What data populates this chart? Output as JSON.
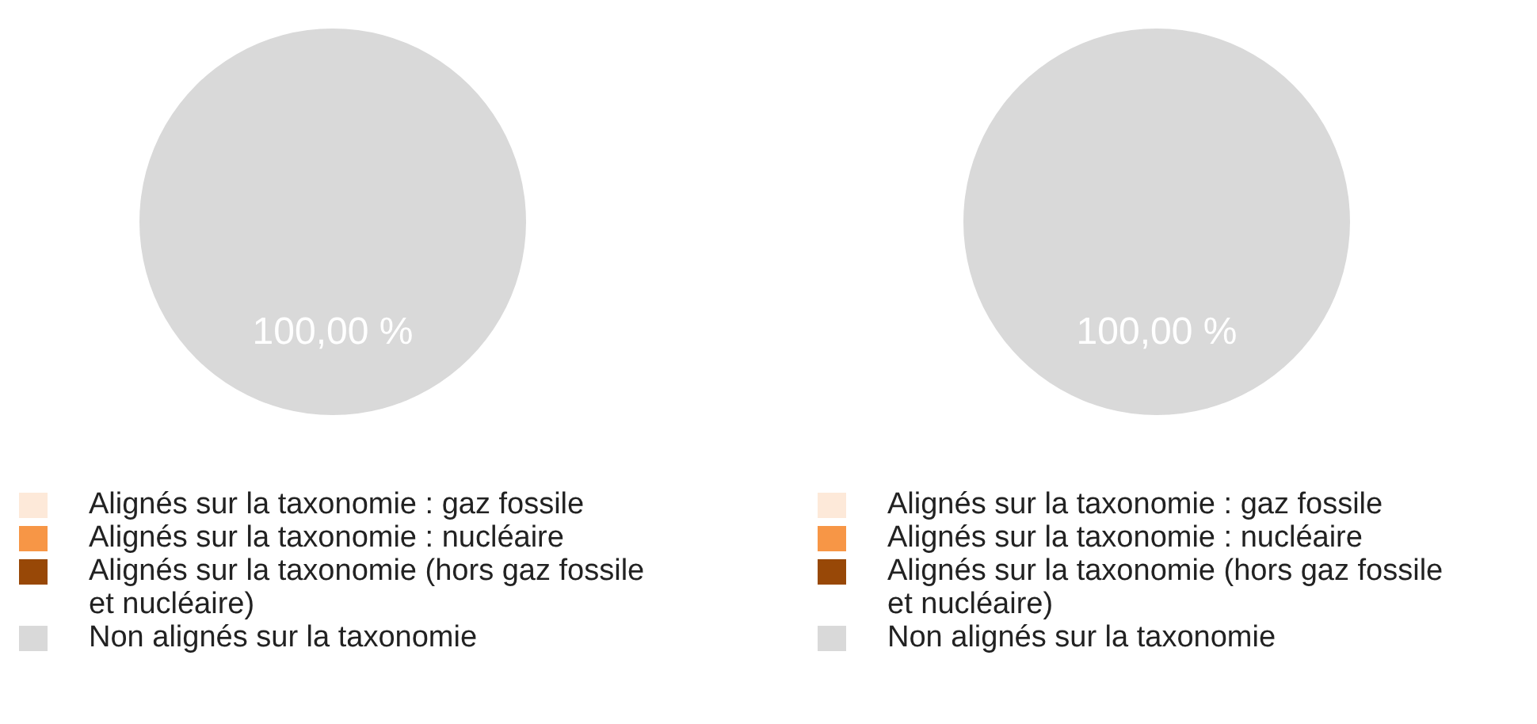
{
  "chart_data": [
    {
      "type": "pie",
      "categories": [
        "Alignés sur la taxonomie : gaz fossile",
        "Alignés sur la taxonomie : nucléaire",
        "Alignés sur la taxonomie (hors gaz fossile et nucléaire)",
        "Non alignés sur la taxonomie"
      ],
      "values": [
        0,
        0,
        0,
        100
      ],
      "colors": [
        "#fde9d9",
        "#f79646",
        "#984807",
        "#d9d9d9"
      ],
      "value_labels": [
        null,
        null,
        null,
        "100,00 %"
      ],
      "legend": "bottom"
    },
    {
      "type": "pie",
      "categories": [
        "Alignés sur la taxonomie : gaz fossile",
        "Alignés sur la taxonomie : nucléaire",
        "Alignés sur la taxonomie (hors gaz fossile et nucléaire)",
        "Non alignés sur la taxonomie"
      ],
      "values": [
        0,
        0,
        0,
        100
      ],
      "colors": [
        "#fde9d9",
        "#f79646",
        "#984807",
        "#d9d9d9"
      ],
      "value_labels": [
        null,
        null,
        null,
        "100,00 %"
      ],
      "legend": "bottom"
    }
  ]
}
